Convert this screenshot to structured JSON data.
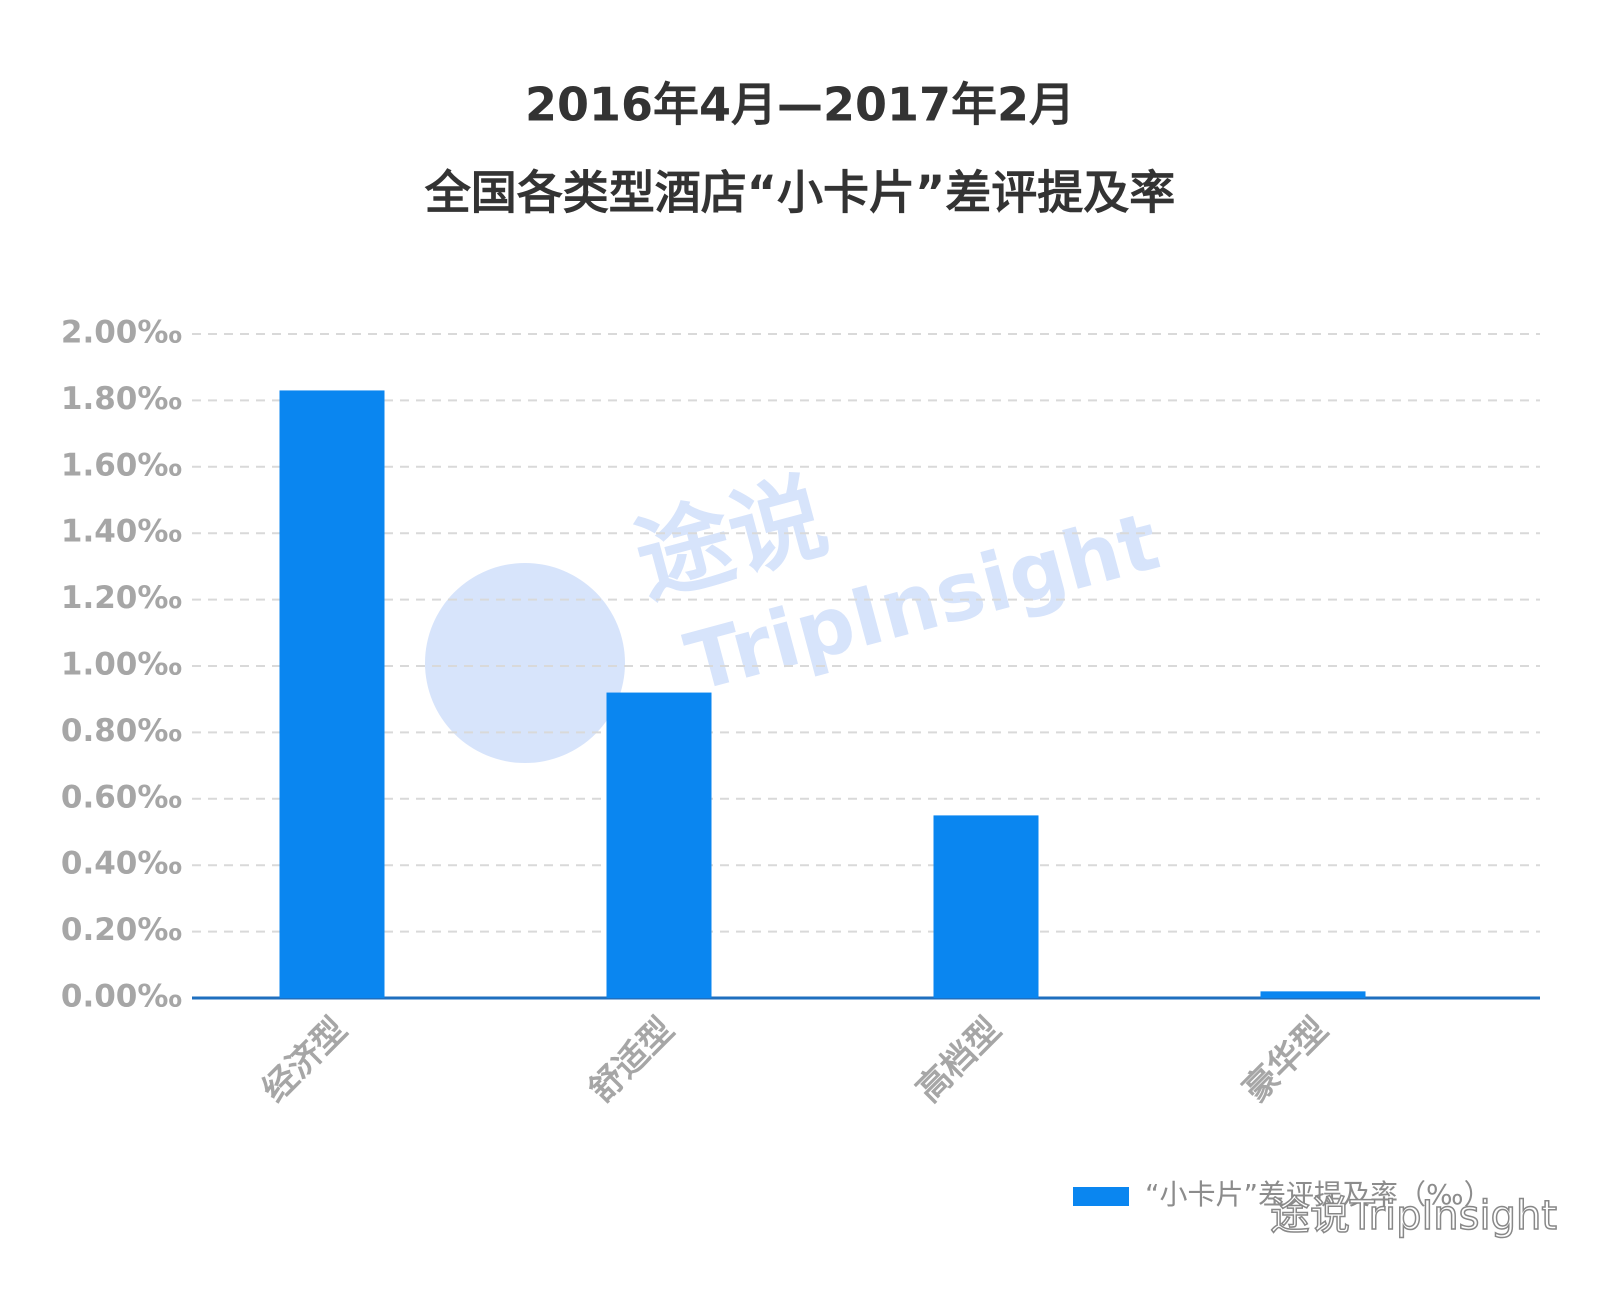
{
  "chart_data": {
    "type": "bar",
    "title": [
      "2016年4月—2017年2月",
      "全国各类型酒店“小卡片”差评提及率"
    ],
    "categories": [
      "经济型",
      "舒适型",
      "高档型",
      "豪华型"
    ],
    "series": [
      {
        "name": "“小卡片”差评提及率（‰）",
        "color": "#0a86f0",
        "values": [
          1.83,
          0.92,
          0.55,
          0.02
        ]
      }
    ],
    "ylim": [
      0,
      2
    ],
    "yticks": [
      {
        "value": 0,
        "label": "0.00‰"
      },
      {
        "value": 0.2,
        "label": "0.20‰"
      },
      {
        "value": 0.4,
        "label": "0.40‰"
      },
      {
        "value": 0.6,
        "label": "0.60‰"
      },
      {
        "value": 0.8,
        "label": "0.80‰"
      },
      {
        "value": 1,
        "label": "1.00‰"
      },
      {
        "value": 1.2,
        "label": "1.20‰"
      },
      {
        "value": 1.4,
        "label": "1.40‰"
      },
      {
        "value": 1.6,
        "label": "1.60‰"
      },
      {
        "value": 1.8,
        "label": "1.80‰"
      },
      {
        "value": 2,
        "label": "2.00‰"
      }
    ],
    "grid": true,
    "legend_position": "bottom-right",
    "watermark": [
      "途说",
      "TripInsight",
      "途说TripInsight"
    ]
  }
}
